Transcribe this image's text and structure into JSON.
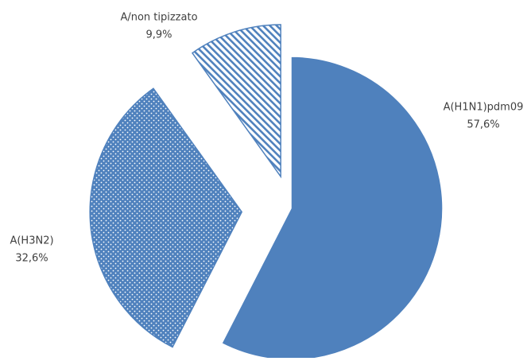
{
  "chart_data": {
    "type": "pie",
    "categories": [
      "A(H1N1)pdm09",
      "A(H3N2)",
      "A/non tipizzato"
    ],
    "values": [
      57.6,
      32.6,
      9.9
    ],
    "value_labels": [
      "57,6%",
      "32,6%",
      "9,9%"
    ],
    "colors": [
      "#4f81bd",
      "#4f81bd",
      "#4f81bd"
    ],
    "patterns": [
      "solid",
      "dots",
      "stripes"
    ]
  }
}
